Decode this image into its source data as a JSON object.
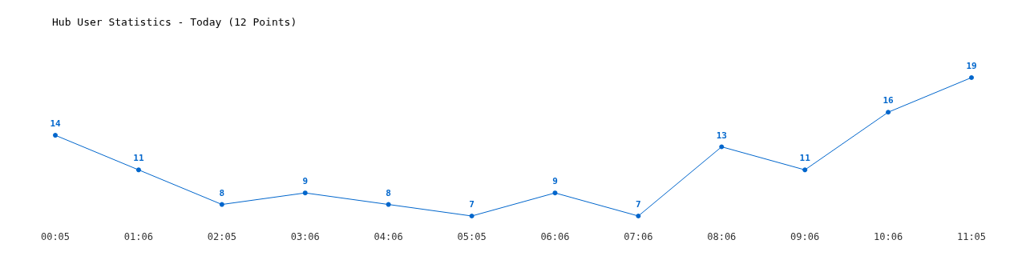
{
  "chart_data": {
    "type": "line",
    "title": "Hub User Statistics - Today (12 Points)",
    "categories": [
      "00:05",
      "01:06",
      "02:05",
      "03:06",
      "04:06",
      "05:05",
      "06:06",
      "07:06",
      "08:06",
      "09:06",
      "10:06",
      "11:05"
    ],
    "values": [
      14,
      11,
      8,
      9,
      8,
      7,
      9,
      7,
      13,
      11,
      16,
      19
    ],
    "color": "#0066cc",
    "marker": "circle",
    "line_style": "solid",
    "data_labels": true,
    "grid": false
  }
}
